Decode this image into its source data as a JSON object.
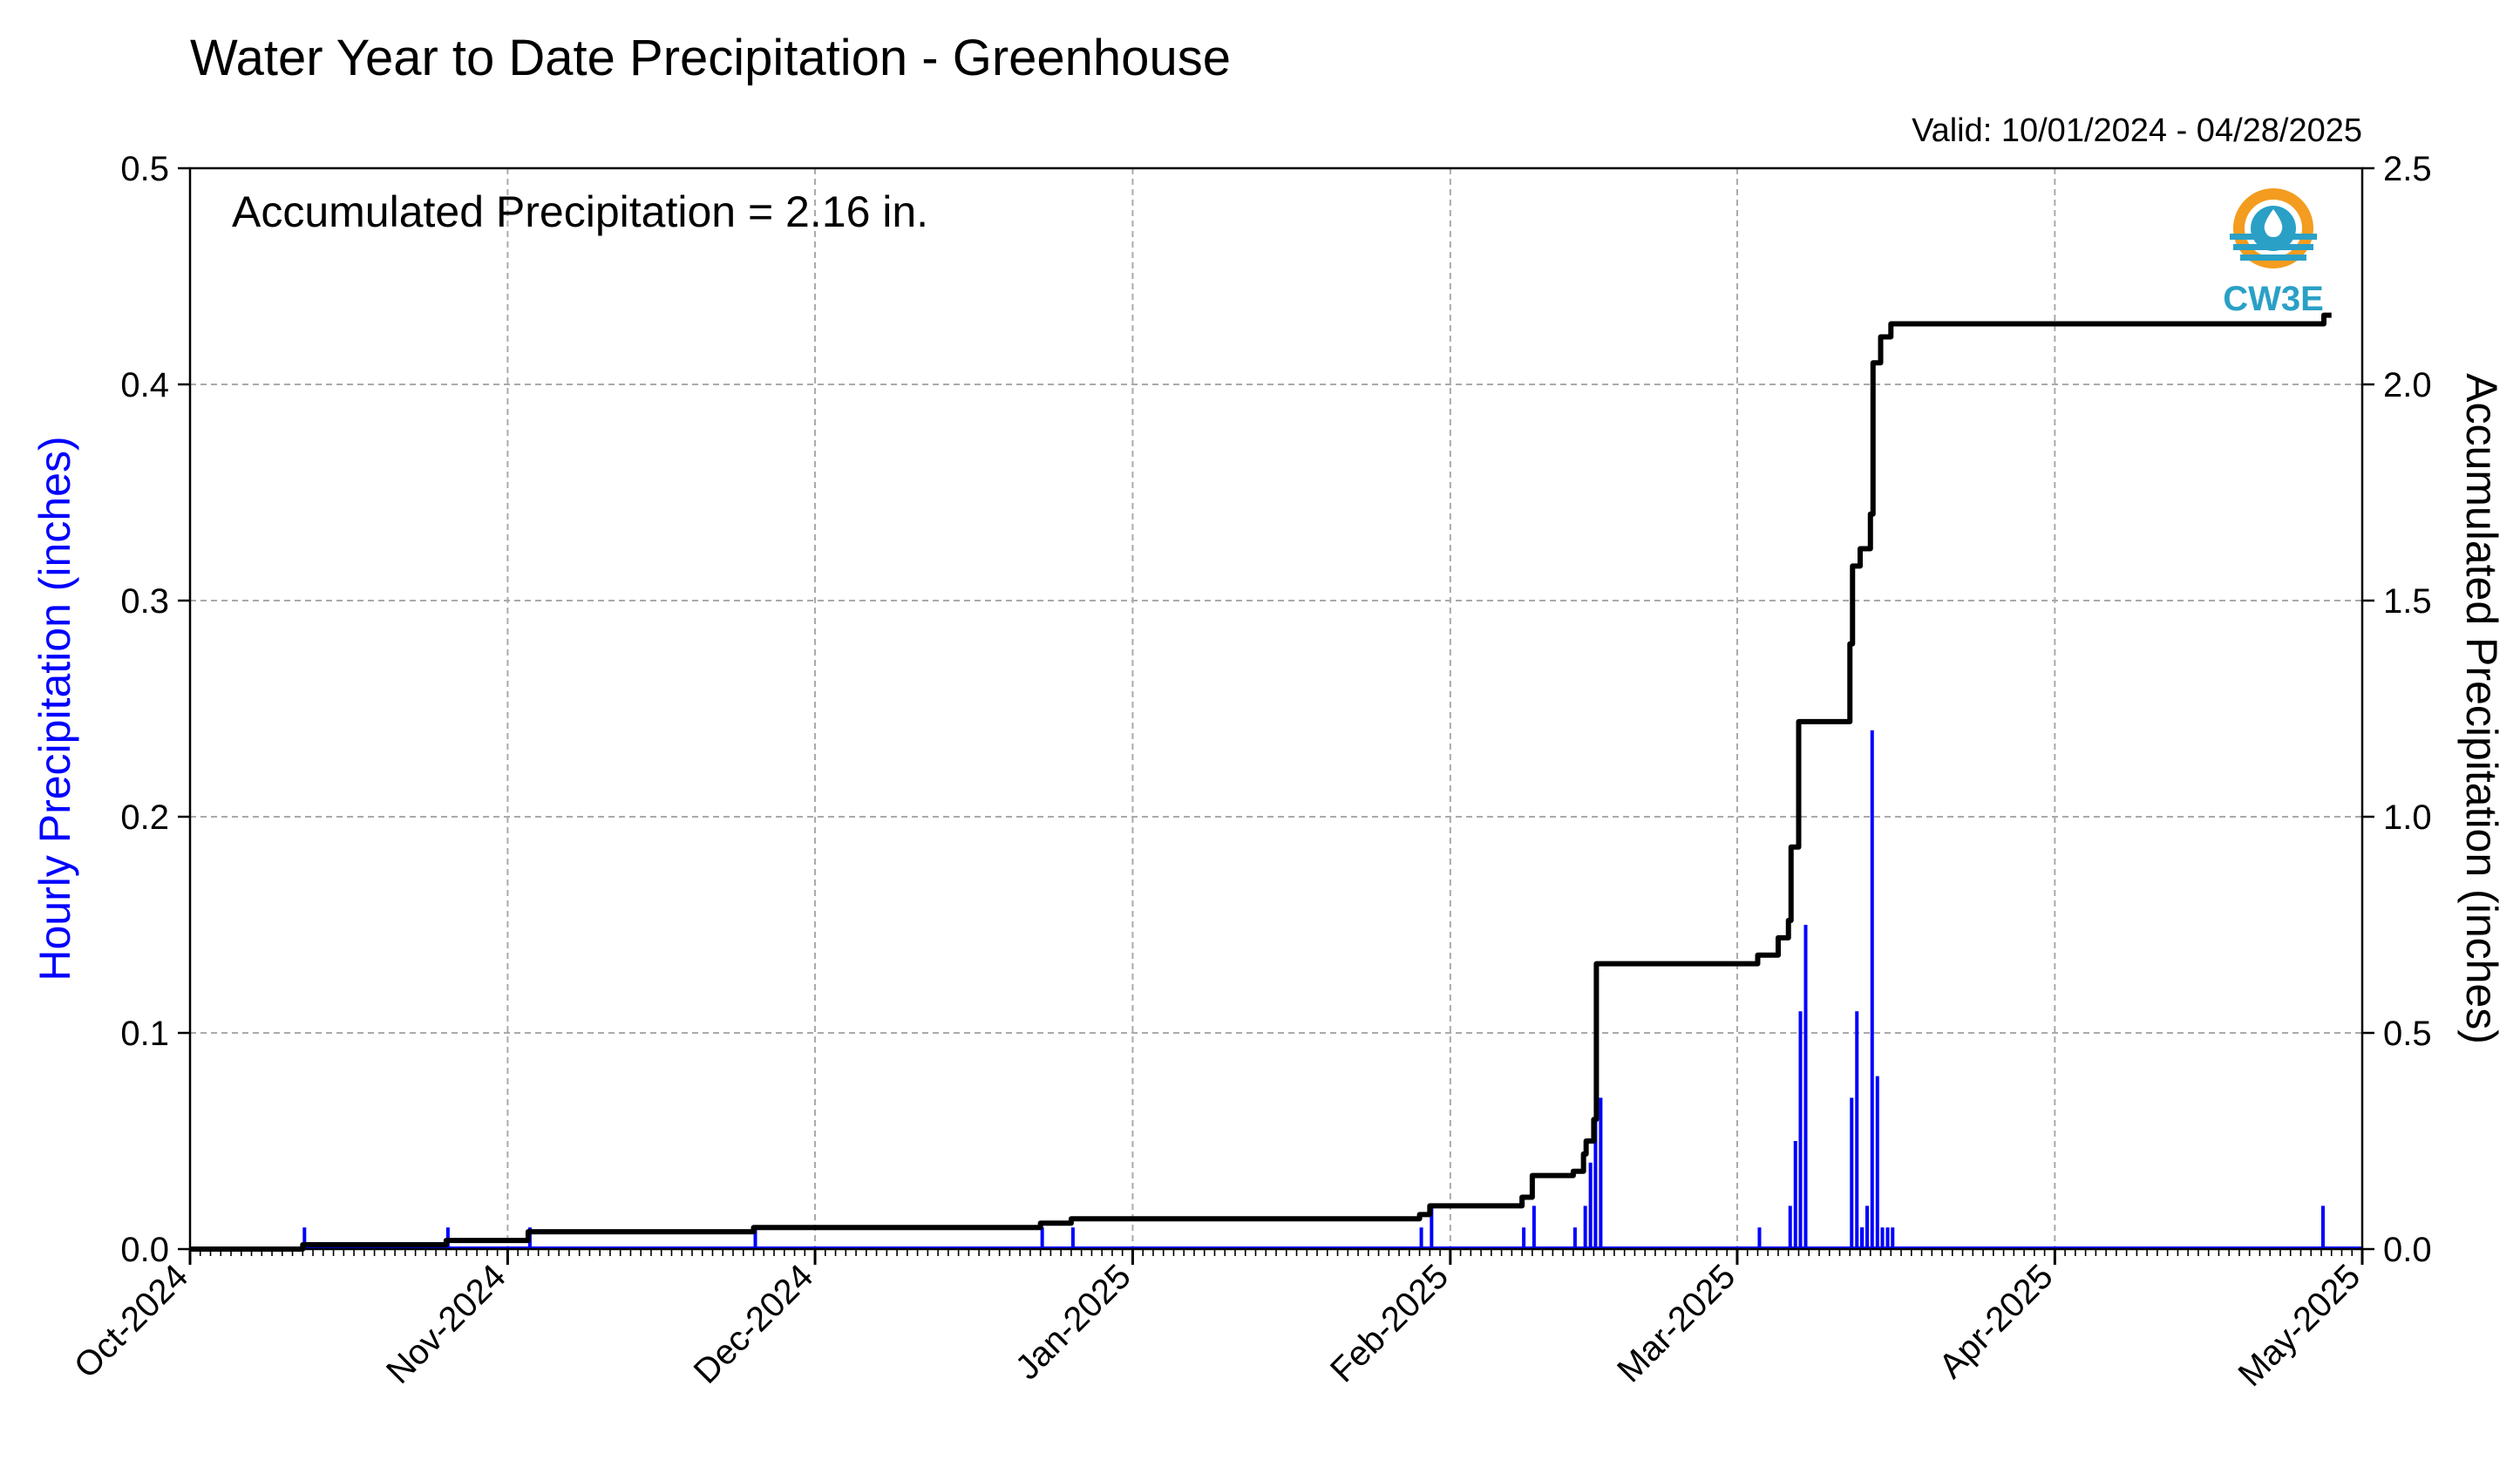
{
  "chart_data": {
    "type": "bar",
    "title": "Water Year to Date Precipitation - Greenhouse",
    "subtitle": "Valid: 10/01/2024 - 04/28/2025",
    "annotation": "Accumulated Precipitation = 2.16 in.",
    "logo_text": "CW3E",
    "ylabel_left": "Hourly Precipitation (inches)",
    "ylabel_right": "Accumulated Precipitation (inches)",
    "ylim_left": [
      0,
      0.5
    ],
    "ylim_right": [
      0,
      2.5
    ],
    "yticks_left": [
      "0.0",
      "0.1",
      "0.2",
      "0.3",
      "0.4",
      "0.5"
    ],
    "yticks_right": [
      "0.0",
      "0.5",
      "1.0",
      "1.5",
      "2.0",
      "2.5"
    ],
    "xlim": [
      "2024-10-01",
      "2025-05-01"
    ],
    "x_ticks": [
      {
        "label": "Oct-2024",
        "date": "2024-10-01"
      },
      {
        "label": "Nov-2024",
        "date": "2024-11-01"
      },
      {
        "label": "Dec-2024",
        "date": "2024-12-01"
      },
      {
        "label": "Jan-2025",
        "date": "2025-01-01"
      },
      {
        "label": "Feb-2025",
        "date": "2025-02-01"
      },
      {
        "label": "Mar-2025",
        "date": "2025-03-01"
      },
      {
        "label": "Apr-2025",
        "date": "2025-04-01"
      },
      {
        "label": "May-2025",
        "date": "2025-05-01"
      }
    ],
    "grid": true,
    "colors": {
      "hourly": "#0000ff",
      "accumulated": "#000000",
      "logo_orange": "#f39c1f",
      "logo_blue": "#2aa0c6"
    },
    "series": [
      {
        "name": "Hourly Precipitation",
        "axis": "left",
        "style": "bar",
        "points": [
          [
            "2024-10-12",
            0.01
          ],
          [
            "2024-10-26",
            0.01
          ],
          [
            "2024-11-03",
            0.01
          ],
          [
            "2024-11-25",
            0.01
          ],
          [
            "2024-12-23",
            0.01
          ],
          [
            "2024-12-26",
            0.01
          ],
          [
            "2025-01-29",
            0.01
          ],
          [
            "2025-01-30",
            0.02
          ],
          [
            "2025-02-08",
            0.01
          ],
          [
            "2025-02-09",
            0.02
          ],
          [
            "2025-02-13",
            0.01
          ],
          [
            "2025-02-14",
            0.02
          ],
          [
            "2025-02-14",
            0.04
          ],
          [
            "2025-02-15",
            0.06
          ],
          [
            "2025-02-15",
            0.07
          ],
          [
            "2025-03-03",
            0.01
          ],
          [
            "2025-03-06",
            0.02
          ],
          [
            "2025-03-06",
            0.05
          ],
          [
            "2025-03-07",
            0.11
          ],
          [
            "2025-03-07",
            0.15
          ],
          [
            "2025-03-12",
            0.07
          ],
          [
            "2025-03-12",
            0.11
          ],
          [
            "2025-03-12",
            0.01
          ],
          [
            "2025-03-13",
            0.01
          ],
          [
            "2025-03-13",
            0.02
          ],
          [
            "2025-03-14",
            0.24
          ],
          [
            "2025-03-14",
            0.08
          ],
          [
            "2025-03-15",
            0.01
          ],
          [
            "2025-03-15",
            0.01
          ],
          [
            "2025-03-16",
            0.01
          ],
          [
            "2025-04-27",
            0.02
          ]
        ]
      },
      {
        "name": "Accumulated Precipitation",
        "axis": "right",
        "style": "step",
        "points": [
          [
            "2024-10-01",
            0.0
          ],
          [
            "2024-10-12",
            0.01
          ],
          [
            "2024-10-26",
            0.02
          ],
          [
            "2024-11-03",
            0.04
          ],
          [
            "2024-11-25",
            0.05
          ],
          [
            "2024-12-23",
            0.06
          ],
          [
            "2024-12-26",
            0.07
          ],
          [
            "2025-01-29",
            0.08
          ],
          [
            "2025-01-30",
            0.1
          ],
          [
            "2025-02-08",
            0.12
          ],
          [
            "2025-02-09",
            0.17
          ],
          [
            "2025-02-13",
            0.18
          ],
          [
            "2025-02-14",
            0.22
          ],
          [
            "2025-02-14",
            0.25
          ],
          [
            "2025-02-15",
            0.3
          ],
          [
            "2025-02-15",
            0.45
          ],
          [
            "2025-02-15",
            0.66
          ],
          [
            "2025-03-03",
            0.68
          ],
          [
            "2025-03-05",
            0.72
          ],
          [
            "2025-03-06",
            0.76
          ],
          [
            "2025-03-06",
            0.93
          ],
          [
            "2025-03-07",
            1.22
          ],
          [
            "2025-03-12",
            1.4
          ],
          [
            "2025-03-12",
            1.58
          ],
          [
            "2025-03-13",
            1.62
          ],
          [
            "2025-03-14",
            1.7
          ],
          [
            "2025-03-14",
            1.95
          ],
          [
            "2025-03-14",
            2.05
          ],
          [
            "2025-03-15",
            2.11
          ],
          [
            "2025-03-16",
            2.14
          ],
          [
            "2025-04-27",
            2.14
          ],
          [
            "2025-04-27",
            2.16
          ],
          [
            "2025-04-28",
            2.16
          ]
        ]
      }
    ]
  }
}
